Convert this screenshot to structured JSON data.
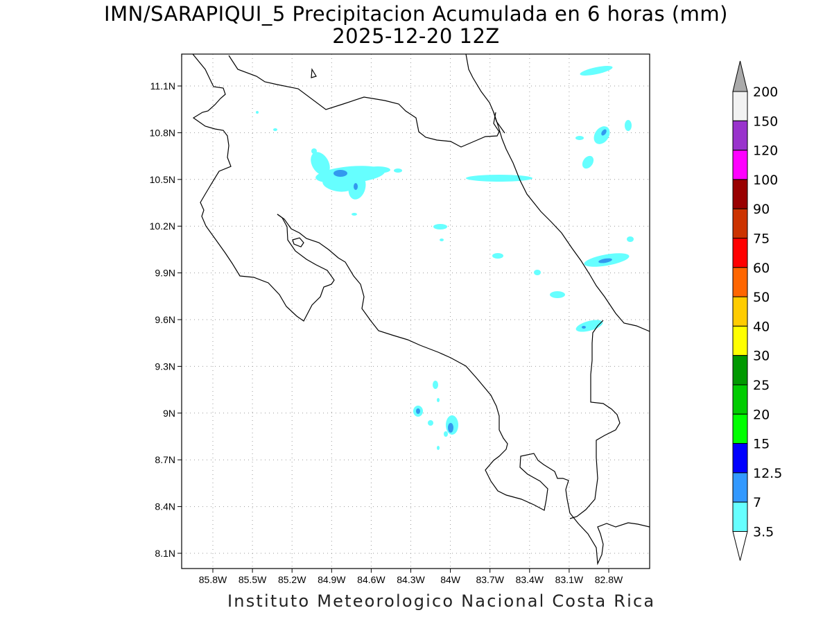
{
  "title": {
    "line1": "IMN/SARAPIQUI_5 Precipitacion Acumulada en 6 horas (mm)",
    "line2": "2025-12-20 12Z"
  },
  "credit": "Instituto Meteorologico Nacional Costa Rica",
  "map": {
    "lon_ticks": [
      "85.8W",
      "85.5W",
      "85.2W",
      "84.9W",
      "84.6W",
      "84.3W",
      "84W",
      "83.7W",
      "83.4W",
      "83.1W",
      "82.8W"
    ],
    "lat_ticks": [
      "11.1N",
      "10.8N",
      "10.5N",
      "10.2N",
      "9.9N",
      "9.6N",
      "9.3N",
      "9N",
      "8.7N",
      "8.4N",
      "8.1N"
    ],
    "gridlines": "dotted"
  },
  "colorbar": {
    "labels": [
      "200",
      "150",
      "120",
      "100",
      "90",
      "75",
      "60",
      "50",
      "40",
      "30",
      "25",
      "20",
      "15",
      "12.5",
      "7",
      "3.5"
    ],
    "colors": [
      "#f2f2f2",
      "#9933cc",
      "#ff00ff",
      "#990000",
      "#cc3300",
      "#ff0000",
      "#ff6600",
      "#ffcc00",
      "#ffff00",
      "#009900",
      "#00cc00",
      "#00ff00",
      "#0000ff",
      "#3399ff",
      "#66ffff"
    ],
    "over_color": "#aaaaaa",
    "under_color": "#ffffff"
  },
  "shading": {
    "light_color": "#66ffff",
    "mid_color": "#3399ee"
  }
}
